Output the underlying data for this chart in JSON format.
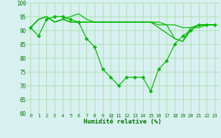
{
  "x": [
    0,
    1,
    2,
    3,
    4,
    5,
    6,
    7,
    8,
    9,
    10,
    11,
    12,
    13,
    14,
    15,
    16,
    17,
    18,
    19,
    20,
    21,
    22,
    23
  ],
  "lines": [
    [
      91,
      88,
      94,
      95,
      95,
      94,
      93,
      87,
      84,
      76,
      73,
      70,
      73,
      73,
      73,
      68,
      76,
      79,
      85,
      88,
      90,
      92,
      92,
      92
    ],
    [
      91,
      94,
      95,
      93,
      94,
      95,
      96,
      94,
      93,
      93,
      93,
      93,
      93,
      93,
      93,
      93,
      93,
      92,
      92,
      91,
      91,
      91,
      92,
      92
    ],
    [
      91,
      94,
      95,
      93,
      94,
      93,
      93,
      93,
      93,
      93,
      93,
      93,
      93,
      93,
      93,
      93,
      92,
      92,
      87,
      86,
      91,
      92,
      92,
      92
    ],
    [
      91,
      94,
      95,
      93,
      94,
      93,
      93,
      93,
      93,
      93,
      93,
      93,
      93,
      93,
      93,
      93,
      91,
      89,
      87,
      86,
      90,
      92,
      92,
      92
    ]
  ],
  "line_color": "#00bb00",
  "bg_color": "#d8f0f0",
  "grid_color": "#aaddaa",
  "xlabel": "Humidité relative (%)",
  "xlabel_color": "#007700",
  "ylim": [
    60,
    100
  ],
  "xlim": [
    -0.5,
    23.5
  ],
  "yticks": [
    60,
    65,
    70,
    75,
    80,
    85,
    90,
    95,
    100
  ],
  "xticks": [
    0,
    1,
    2,
    3,
    4,
    5,
    6,
    7,
    8,
    9,
    10,
    11,
    12,
    13,
    14,
    15,
    16,
    17,
    18,
    19,
    20,
    21,
    22,
    23
  ],
  "tick_color": "#007700",
  "marker": "D",
  "marker_size": 2.5,
  "line_width": 0.9
}
